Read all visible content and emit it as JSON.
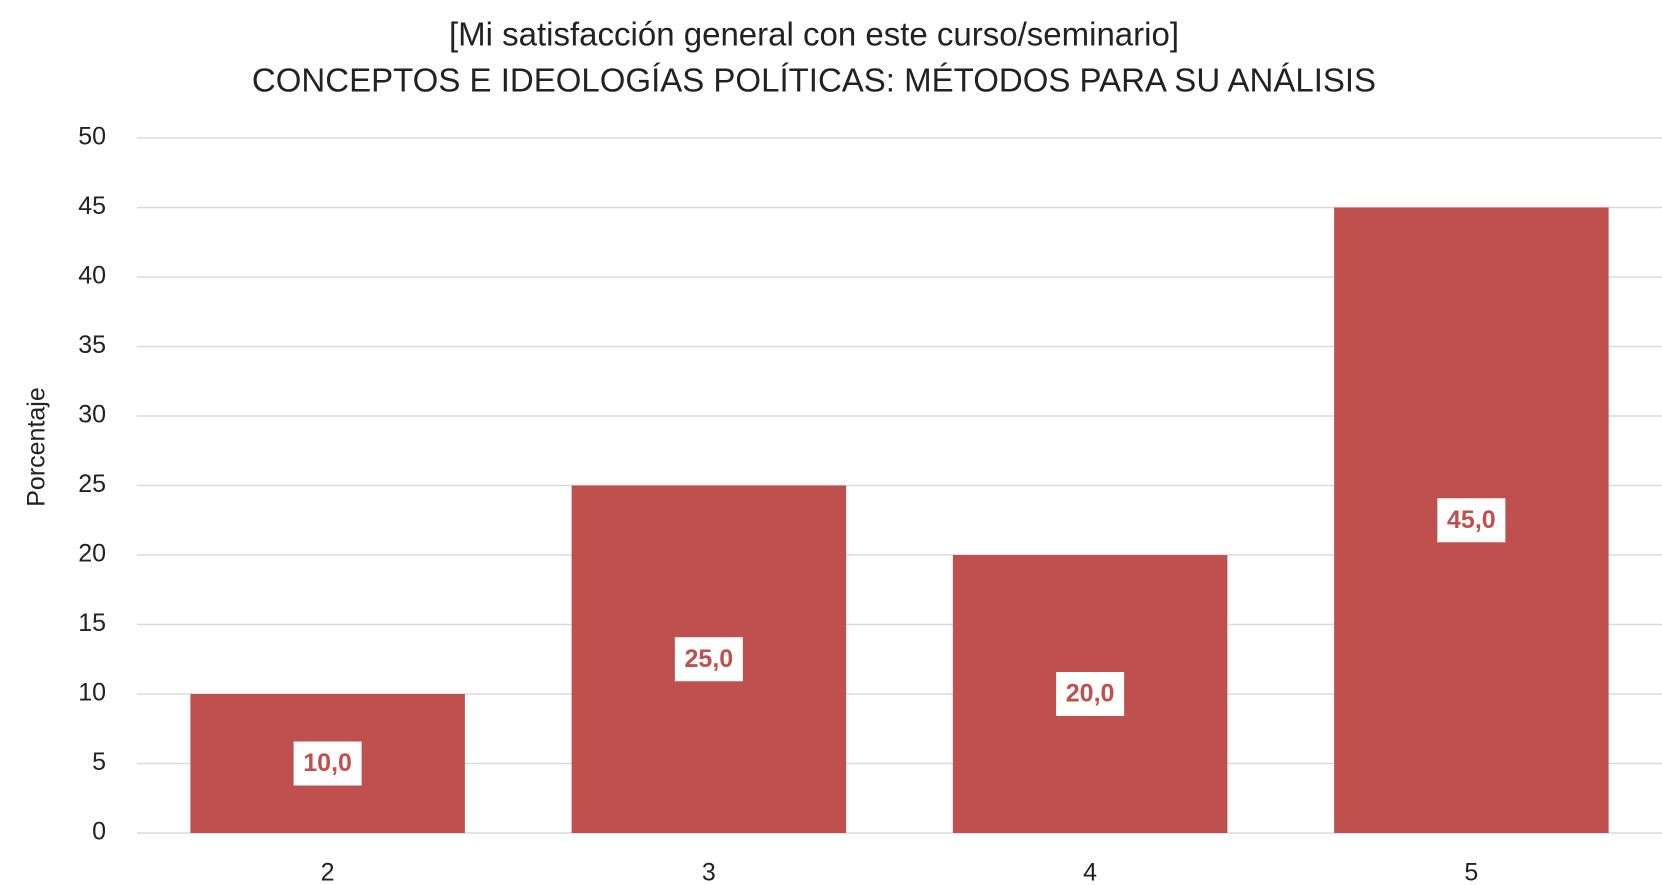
{
  "chart_data": {
    "type": "bar",
    "title": "[Mi satisfacción general con este curso/seminario]",
    "subtitle": "CONCEPTOS E IDEOLOGÍAS POLÍTICAS: MÉTODOS PARA SU ANÁLISIS",
    "y_label": "Porcentaje",
    "categories": [
      "2",
      "3",
      "4",
      "5"
    ],
    "values": [
      10,
      25,
      20,
      45
    ],
    "value_labels": [
      "10,0",
      "25,0",
      "20,0",
      "45,0"
    ],
    "color": "#c0504d",
    "ylim": [
      0,
      50
    ],
    "yticks": [
      0,
      5,
      10,
      15,
      20,
      25,
      30,
      35,
      40,
      45,
      50
    ],
    "grid": true
  }
}
